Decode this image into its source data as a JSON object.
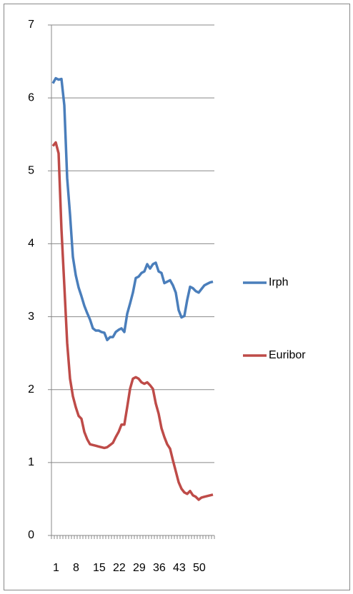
{
  "chart_data": {
    "type": "line",
    "categories": [
      1,
      null,
      null,
      null,
      null,
      null,
      null,
      8,
      null,
      null,
      null,
      null,
      null,
      null,
      15,
      null,
      null,
      null,
      null,
      null,
      null,
      22,
      null,
      null,
      null,
      null,
      null,
      null,
      29,
      null,
      null,
      null,
      null,
      null,
      null,
      36,
      null,
      null,
      null,
      null,
      null,
      null,
      43,
      null,
      null,
      null,
      null,
      null,
      null,
      50,
      null,
      null,
      null,
      null,
      null,
      null,
      null
    ],
    "series": [
      {
        "name": "Irph",
        "color": "#4a7ebb",
        "values": [
          6.2,
          6.27,
          6.25,
          6.26,
          5.9,
          4.9,
          4.4,
          3.82,
          3.57,
          3.4,
          3.28,
          3.15,
          3.05,
          2.96,
          2.84,
          2.81,
          2.81,
          2.79,
          2.78,
          2.68,
          2.72,
          2.72,
          2.79,
          2.82,
          2.84,
          2.79,
          3.04,
          3.18,
          3.33,
          3.53,
          3.55,
          3.6,
          3.62,
          3.72,
          3.66,
          3.72,
          3.74,
          3.62,
          3.6,
          3.46,
          3.48,
          3.5,
          3.43,
          3.33,
          3.09,
          2.99,
          3.01,
          3.23,
          3.41,
          3.39,
          3.35,
          3.33,
          3.38,
          3.43,
          3.45,
          3.47,
          3.48
        ]
      },
      {
        "name": "Euribor",
        "color": "#be4b48",
        "values": [
          5.34,
          5.39,
          5.24,
          4.2,
          3.43,
          2.64,
          2.15,
          1.91,
          1.76,
          1.64,
          1.6,
          1.42,
          1.32,
          1.25,
          1.24,
          1.23,
          1.22,
          1.21,
          1.2,
          1.21,
          1.24,
          1.27,
          1.35,
          1.42,
          1.52,
          1.52,
          1.76,
          2.01,
          2.15,
          2.17,
          2.15,
          2.1,
          2.08,
          2.1,
          2.06,
          2.01,
          1.81,
          1.67,
          1.47,
          1.35,
          1.25,
          1.19,
          1.03,
          0.88,
          0.73,
          0.64,
          0.59,
          0.57,
          0.61,
          0.55,
          0.53,
          0.49,
          0.52,
          0.53,
          0.54,
          0.55,
          0.56
        ]
      }
    ],
    "ylim": [
      0,
      7
    ],
    "yticks": [
      0,
      1,
      2,
      3,
      4,
      5,
      6,
      7
    ],
    "grid": true,
    "legend": "right"
  }
}
